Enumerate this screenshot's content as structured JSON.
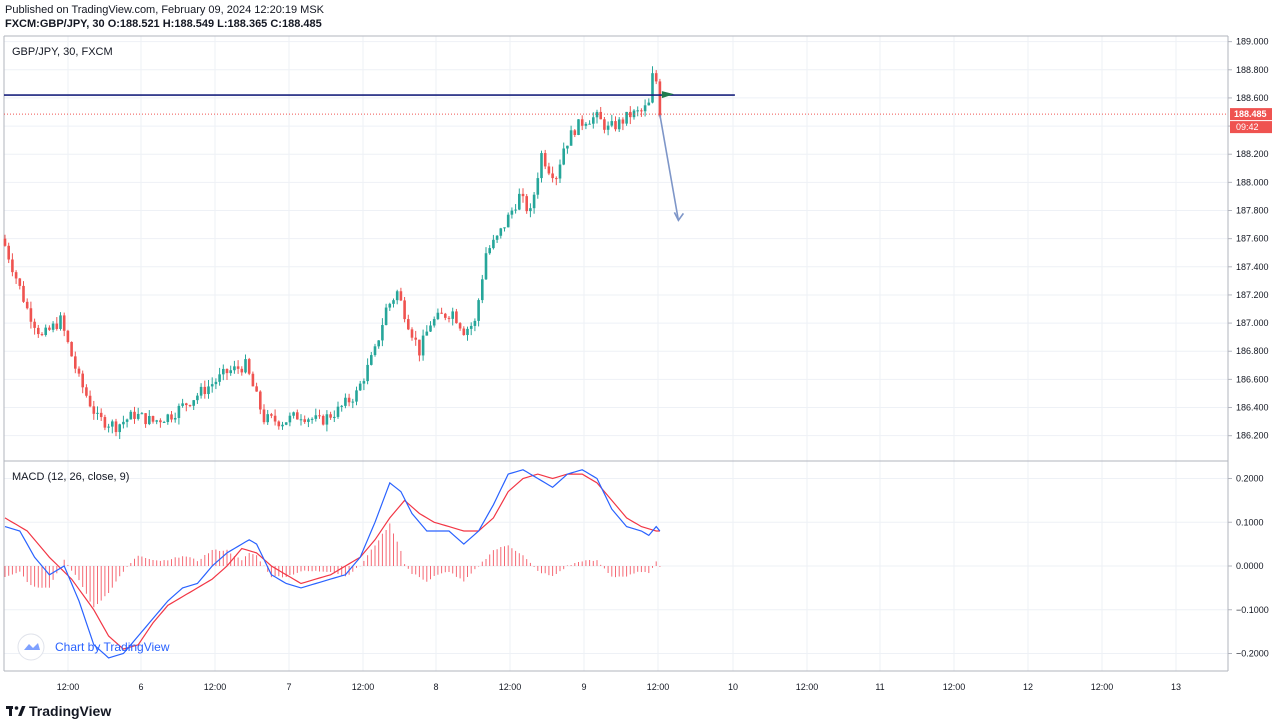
{
  "header": {
    "published": "Published on TradingView.com, February 09, 2024 12:20:19 MSK",
    "ohlc": "FXCM:GBP/JPY, 30 O:188.521 H:188.549 L:188.365 C:188.485"
  },
  "main_pane": {
    "title": "GBP/JPY, 30, FXCM"
  },
  "macd_pane": {
    "title": "MACD (12, 26, close, 9)",
    "watermark": "Chart by TradingView"
  },
  "footer": {
    "brand": "TradingView"
  },
  "colors": {
    "up": "#26a69a",
    "down": "#ef5350",
    "hline": "#1a237e",
    "macd": "#2962ff",
    "signal": "#f23645",
    "arrow": "#7e96c8"
  },
  "chart_data": [
    {
      "type": "candlestick",
      "title": "GBP/JPY, 30, FXCM",
      "ylim": [
        186.02,
        189.04
      ],
      "price_ticks": [
        189.0,
        188.8,
        188.6,
        188.4,
        188.2,
        188.0,
        187.8,
        187.6,
        187.4,
        187.2,
        187.0,
        186.8,
        186.6,
        186.4,
        186.2
      ],
      "price_tick_labels": [
        "189.000",
        "188.800",
        "188.600",
        "",
        "188.200",
        "188.000",
        "187.800",
        "187.600",
        "187.400",
        "187.200",
        "187.000",
        "186.800",
        "186.600",
        "186.400",
        "186.200"
      ],
      "time_labels": [
        "12:00",
        "6",
        "12:00",
        "7",
        "12:00",
        "8",
        "12:00",
        "9",
        "12:00",
        "10",
        "12:00",
        "11",
        "12:00",
        "12",
        "12:00",
        "13"
      ],
      "horizontal_level": 188.62,
      "last_price": "188.485",
      "countdown": "09:42",
      "anchor_points": [
        [
          0,
          187.55
        ],
        [
          6,
          187.1
        ],
        [
          10,
          186.9
        ],
        [
          15,
          187.02
        ],
        [
          20,
          186.6
        ],
        [
          25,
          186.32
        ],
        [
          30,
          186.27
        ],
        [
          35,
          186.35
        ],
        [
          40,
          186.3
        ],
        [
          45,
          186.35
        ],
        [
          50,
          186.45
        ],
        [
          55,
          186.55
        ],
        [
          60,
          186.65
        ],
        [
          65,
          186.7
        ],
        [
          70,
          186.32
        ],
        [
          75,
          186.3
        ],
        [
          80,
          186.35
        ],
        [
          85,
          186.3
        ],
        [
          90,
          186.38
        ],
        [
          95,
          186.5
        ],
        [
          100,
          186.8
        ],
        [
          103,
          187.1
        ],
        [
          106,
          187.22
        ],
        [
          109,
          187.0
        ],
        [
          112,
          186.8
        ],
        [
          115,
          187.0
        ],
        [
          118,
          187.05
        ],
        [
          121,
          187.08
        ],
        [
          124,
          186.95
        ],
        [
          127,
          187.0
        ],
        [
          130,
          187.5
        ],
        [
          133,
          187.6
        ],
        [
          137,
          187.8
        ],
        [
          139,
          187.9
        ],
        [
          142,
          187.78
        ],
        [
          145,
          188.2
        ],
        [
          147,
          188.1
        ],
        [
          149,
          188.05
        ],
        [
          151,
          188.25
        ],
        [
          154,
          188.38
        ],
        [
          157,
          188.45
        ],
        [
          160,
          188.46
        ],
        [
          163,
          188.38
        ],
        [
          166,
          188.42
        ],
        [
          169,
          188.48
        ],
        [
          172,
          188.5
        ],
        [
          174,
          188.55
        ],
        [
          175,
          188.75
        ],
        [
          176,
          188.72
        ],
        [
          177,
          188.5
        ]
      ],
      "forecast_arrow": {
        "from": [
          177,
          188.48
        ],
        "to": [
          182,
          187.73
        ]
      }
    },
    {
      "type": "macd",
      "title": "MACD (12, 26, close, 9)",
      "ylim": [
        -0.24,
        0.24
      ],
      "ticks": [
        0.2,
        0.1,
        0.0,
        -0.1,
        -0.2
      ],
      "tick_labels": [
        "0.2000",
        "0.1000",
        "0.0000",
        "−0.1000",
        "−0.2000"
      ],
      "macd_series": [
        [
          0,
          0.09
        ],
        [
          4,
          0.08
        ],
        [
          8,
          0.02
        ],
        [
          12,
          -0.02
        ],
        [
          16,
          0.0
        ],
        [
          20,
          -0.08
        ],
        [
          24,
          -0.18
        ],
        [
          28,
          -0.21
        ],
        [
          32,
          -0.2
        ],
        [
          36,
          -0.16
        ],
        [
          40,
          -0.12
        ],
        [
          44,
          -0.08
        ],
        [
          48,
          -0.05
        ],
        [
          52,
          -0.04
        ],
        [
          56,
          0.0
        ],
        [
          60,
          0.03
        ],
        [
          64,
          0.05
        ],
        [
          66,
          0.06
        ],
        [
          68,
          0.05
        ],
        [
          72,
          -0.02
        ],
        [
          76,
          -0.04
        ],
        [
          80,
          -0.05
        ],
        [
          84,
          -0.04
        ],
        [
          88,
          -0.03
        ],
        [
          92,
          -0.02
        ],
        [
          96,
          0.02
        ],
        [
          100,
          0.1
        ],
        [
          104,
          0.19
        ],
        [
          107,
          0.17
        ],
        [
          110,
          0.12
        ],
        [
          114,
          0.08
        ],
        [
          118,
          0.08
        ],
        [
          120,
          0.08
        ],
        [
          124,
          0.05
        ],
        [
          128,
          0.08
        ],
        [
          132,
          0.14
        ],
        [
          136,
          0.21
        ],
        [
          140,
          0.22
        ],
        [
          144,
          0.2
        ],
        [
          148,
          0.18
        ],
        [
          152,
          0.21
        ],
        [
          156,
          0.22
        ],
        [
          160,
          0.2
        ],
        [
          164,
          0.13
        ],
        [
          168,
          0.09
        ],
        [
          172,
          0.08
        ],
        [
          174,
          0.07
        ],
        [
          176,
          0.09
        ],
        [
          177,
          0.08
        ]
      ],
      "signal_series": [
        [
          0,
          0.11
        ],
        [
          6,
          0.08
        ],
        [
          12,
          0.02
        ],
        [
          18,
          -0.03
        ],
        [
          24,
          -0.1
        ],
        [
          28,
          -0.16
        ],
        [
          32,
          -0.19
        ],
        [
          36,
          -0.18
        ],
        [
          40,
          -0.13
        ],
        [
          44,
          -0.09
        ],
        [
          50,
          -0.06
        ],
        [
          56,
          -0.03
        ],
        [
          60,
          0.0
        ],
        [
          64,
          0.04
        ],
        [
          68,
          0.03
        ],
        [
          72,
          0.0
        ],
        [
          76,
          -0.02
        ],
        [
          80,
          -0.04
        ],
        [
          84,
          -0.03
        ],
        [
          88,
          -0.02
        ],
        [
          92,
          0.0
        ],
        [
          96,
          0.02
        ],
        [
          100,
          0.06
        ],
        [
          104,
          0.11
        ],
        [
          108,
          0.15
        ],
        [
          112,
          0.12
        ],
        [
          116,
          0.1
        ],
        [
          120,
          0.09
        ],
        [
          124,
          0.08
        ],
        [
          128,
          0.08
        ],
        [
          132,
          0.11
        ],
        [
          136,
          0.17
        ],
        [
          140,
          0.2
        ],
        [
          144,
          0.21
        ],
        [
          148,
          0.2
        ],
        [
          152,
          0.21
        ],
        [
          156,
          0.21
        ],
        [
          160,
          0.19
        ],
        [
          164,
          0.15
        ],
        [
          168,
          0.11
        ],
        [
          172,
          0.09
        ],
        [
          176,
          0.08
        ],
        [
          177,
          0.08
        ]
      ]
    }
  ]
}
